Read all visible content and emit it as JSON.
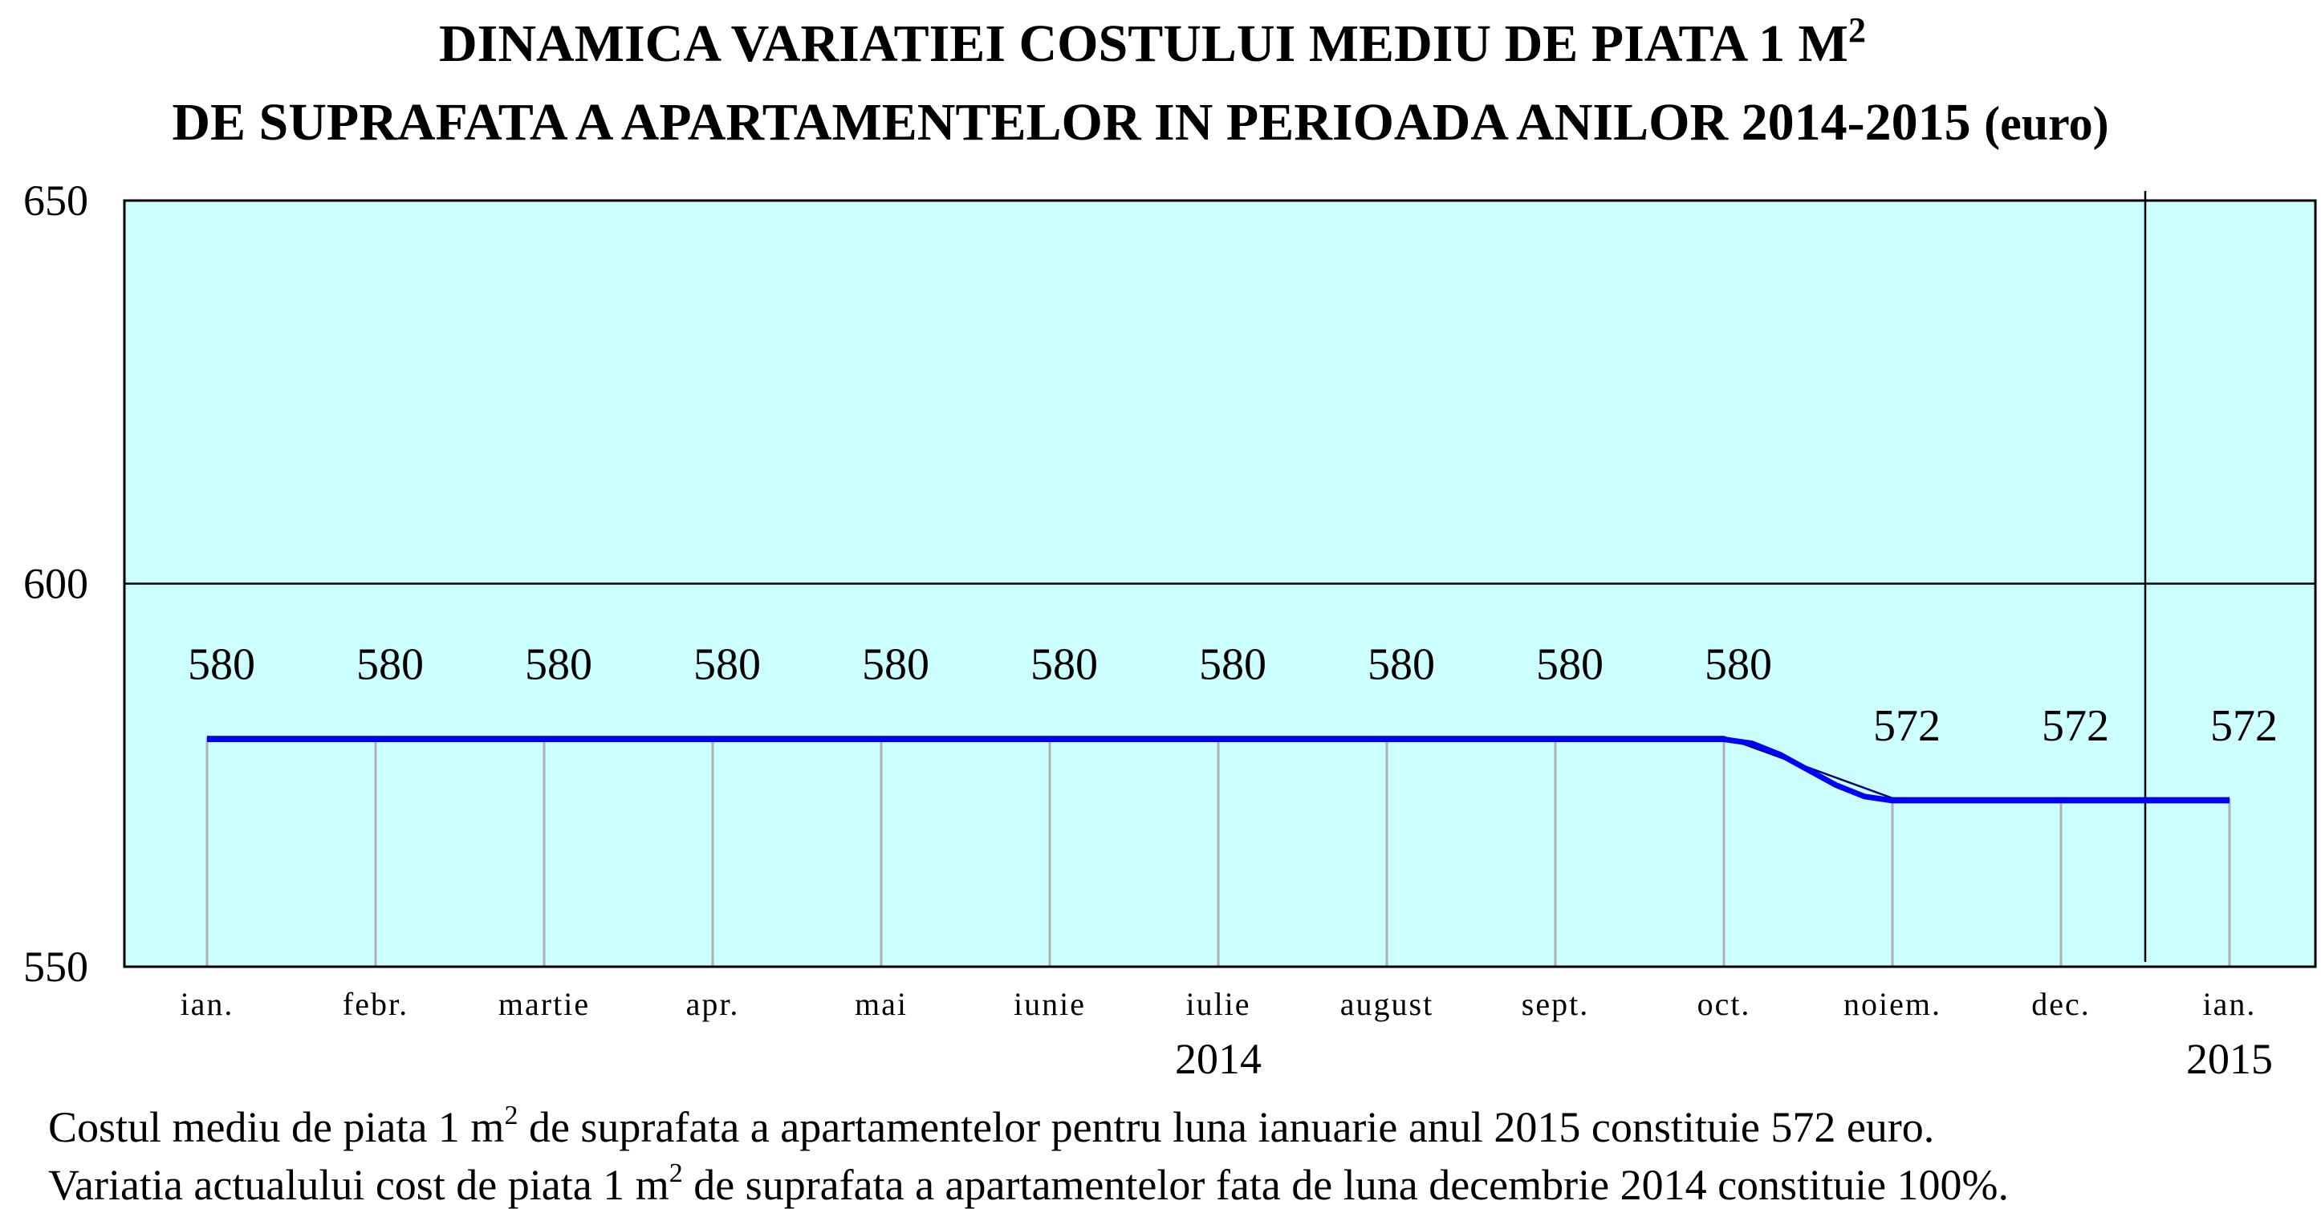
{
  "title": {
    "line1_main": "DINAMICA VARIATIEI COSTULUI MEDIU DE PIATA 1 M",
    "line1_sup": "2",
    "line2_main": "DE SUPRAFATA A APARTAMENTELOR IN PERIOADA ANILOR 2014-2015",
    "line2_unit": "(euro)"
  },
  "chart_data": {
    "type": "line",
    "categories": [
      "ian.",
      "febr.",
      "martie",
      "apr.",
      "mai",
      "iunie",
      "iulie",
      "august",
      "sept.",
      "oct.",
      "noiem.",
      "dec.",
      "ian."
    ],
    "values": [
      580,
      580,
      580,
      580,
      580,
      580,
      580,
      580,
      580,
      580,
      572,
      572,
      572
    ],
    "data_labels": [
      "580",
      "580",
      "580",
      "580",
      "580",
      "580",
      "580",
      "580",
      "580",
      "580",
      "572",
      "572",
      "572"
    ],
    "year_labels": [
      {
        "text": "2014",
        "under_category_index": 6
      },
      {
        "text": "2015",
        "under_category_index": 12
      }
    ],
    "year_separator_after_index": 11,
    "ylim": [
      550,
      650
    ],
    "yticks": [
      550,
      600,
      650
    ],
    "ytick_labels": [
      "550",
      "600",
      "650"
    ],
    "xlabel": "",
    "ylabel": "",
    "grid": "horizontal line at 600",
    "legend": "none",
    "colors": {
      "plot_background": "#ccffff",
      "line": "#0000ff",
      "trend_line": "#000080",
      "drop_lines": "#b0b0b0",
      "axes": "#000000"
    }
  },
  "notes": {
    "line1_pre": "Costul mediu de piata 1 m",
    "line1_sup": "2",
    "line1_post": " de suprafata a apartamentelor pentru luna ianuarie anul 2015 constituie 572 euro.",
    "line2_pre": "Variatia actualului cost de piata 1 m",
    "line2_sup": "2",
    "line2_post": " de suprafata a apartamentelor fata de luna decembrie 2014 constituie 100%."
  }
}
